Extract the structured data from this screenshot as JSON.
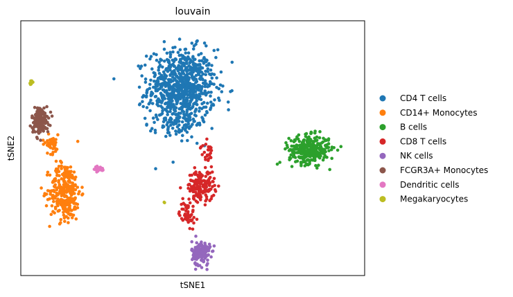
{
  "chart_data": {
    "type": "scatter",
    "title": "louvain",
    "xlabel": "tSNE1",
    "ylabel": "tSNE2",
    "ticks": "none",
    "grid": false,
    "legend_placement": "right outside",
    "series": [
      {
        "name": "CD4 T cells",
        "color": "#1f77b4",
        "clusters": [
          {
            "cx": 0.0,
            "cy": 25.0,
            "sx": 11.0,
            "sy": 12.5,
            "n": 820
          },
          {
            "cx": -2.0,
            "cy": 12.0,
            "sx": 8.0,
            "sy": 4.0,
            "n": 60
          }
        ]
      },
      {
        "name": "CD14+ Monocytes",
        "color": "#ff7f0e",
        "clusters": [
          {
            "cx": -42.0,
            "cy": -12.0,
            "sx": 5.0,
            "sy": 9.5,
            "n": 300
          },
          {
            "cx": -47.0,
            "cy": 5.0,
            "sx": 3.0,
            "sy": 3.0,
            "n": 40
          }
        ]
      },
      {
        "name": "B cells",
        "color": "#2ca02c",
        "clusters": [
          {
            "cx": 46.0,
            "cy": 3.0,
            "sx": 6.5,
            "sy": 4.5,
            "n": 330
          }
        ]
      },
      {
        "name": "CD8 T cells",
        "color": "#d62728",
        "clusters": [
          {
            "cx": 7.0,
            "cy": -10.0,
            "sx": 4.5,
            "sy": 5.0,
            "n": 170
          },
          {
            "cx": 2.0,
            "cy": -20.0,
            "sx": 2.5,
            "sy": 4.0,
            "n": 50
          },
          {
            "cx": 9.0,
            "cy": 2.0,
            "sx": 2.0,
            "sy": 3.0,
            "n": 25
          }
        ]
      },
      {
        "name": "NK cells",
        "color": "#9467bd",
        "clusters": [
          {
            "cx": 7.0,
            "cy": -34.0,
            "sx": 3.0,
            "sy": 4.0,
            "n": 150
          }
        ]
      },
      {
        "name": "FCGR3A+ Monocytes",
        "color": "#8c564b",
        "clusters": [
          {
            "cx": -51.0,
            "cy": 13.5,
            "sx": 2.8,
            "sy": 4.5,
            "n": 150
          }
        ]
      },
      {
        "name": "Dendritic cells",
        "color": "#e377c2",
        "clusters": [
          {
            "cx": -30.0,
            "cy": -4.0,
            "sx": 2.0,
            "sy": 0.8,
            "n": 36
          }
        ]
      },
      {
        "name": "Megakaryocytes",
        "color": "#bcbd22",
        "clusters": [
          {
            "cx": -54.0,
            "cy": 27.0,
            "sx": 0.6,
            "sy": 0.6,
            "n": 9
          },
          {
            "cx": -6.0,
            "cy": -16.0,
            "sx": 0.3,
            "sy": 0.3,
            "n": 2
          }
        ]
      }
    ],
    "xlim": [
      -58,
      66
    ],
    "ylim": [
      -42,
      49
    ]
  }
}
